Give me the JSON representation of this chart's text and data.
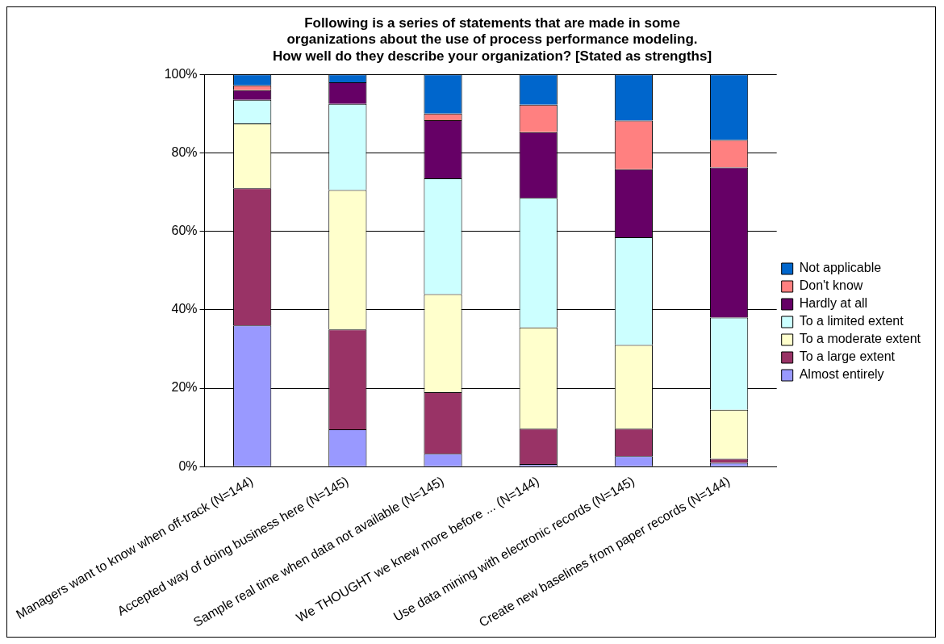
{
  "chart_data": {
    "type": "bar",
    "stacked": true,
    "title": "Following is a series of statements that are made in some\norganizations about the use of process performance modeling.\nHow well do they describe your organization? [Stated as strengths]",
    "categories": [
      "Managers want to know when off-track (N=144)",
      "Accepted way of doing business here (N=145)",
      "Sample real time when data not available (N=145)",
      "We THOUGHT we knew more before ... (N=144)",
      "Use data mining with electronic records (N=145)",
      "Create new baselines from paper records (N=144)"
    ],
    "series": [
      {
        "name": "Almost entirely",
        "color": "#9999ff",
        "values": [
          36,
          9.5,
          3.3,
          0.7,
          2.7,
          1
        ]
      },
      {
        "name": "To a large extent",
        "color": "#993366",
        "values": [
          35,
          25.5,
          15.7,
          9,
          7,
          1
        ]
      },
      {
        "name": "To a moderate extent",
        "color": "#ffffcc",
        "values": [
          16.5,
          35.5,
          25,
          25.8,
          21.3,
          12.5
        ]
      },
      {
        "name": "To a limited extent",
        "color": "#ccffff",
        "values": [
          6,
          22,
          29.5,
          33,
          27.5,
          23.5
        ]
      },
      {
        "name": "Hardly at all",
        "color": "#660066",
        "values": [
          2.5,
          5.5,
          14.8,
          16.8,
          17.3,
          38.3
        ]
      },
      {
        "name": "Don't know",
        "color": "#ff8080",
        "values": [
          1.2,
          null,
          1.7,
          7,
          12.4,
          7
        ]
      },
      {
        "name": "Not applicable",
        "color": "#0066cc",
        "values": [
          2.8,
          2,
          10,
          7.7,
          11.8,
          16.7
        ]
      }
    ],
    "ylim": [
      0,
      100
    ],
    "yticks": [
      {
        "value": 0,
        "label": "0%"
      },
      {
        "value": 20,
        "label": "20%"
      },
      {
        "value": 40,
        "label": "40%"
      },
      {
        "value": 60,
        "label": "60%"
      },
      {
        "value": 80,
        "label": "80%"
      },
      {
        "value": 100,
        "label": "100%"
      }
    ],
    "grid": "y",
    "legend": "right"
  }
}
